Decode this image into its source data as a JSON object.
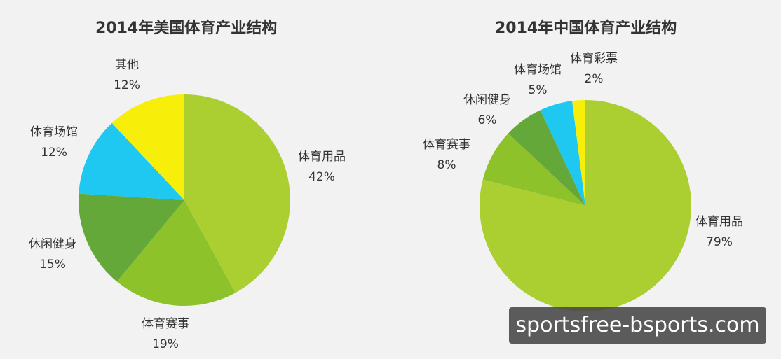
{
  "chart_data": [
    {
      "type": "pie",
      "title": "2014年美国体育产业结构",
      "slices": [
        {
          "label": "体育用品",
          "value": 42,
          "value_label": "42%",
          "color": "#abcf31"
        },
        {
          "label": "体育赛事",
          "value": 19,
          "value_label": "19%",
          "color": "#8dc22a"
        },
        {
          "label": "休闲健身",
          "value": 15,
          "value_label": "15%",
          "color": "#64a83a"
        },
        {
          "label": "体育场馆",
          "value": 12,
          "value_label": "12%",
          "color": "#1ec8f0"
        },
        {
          "label": "其他",
          "value": 12,
          "value_label": "12%",
          "color": "#f7ee09"
        }
      ]
    },
    {
      "type": "pie",
      "title": "2014年中国体育产业结构",
      "slices": [
        {
          "label": "体育用品",
          "value": 79,
          "value_label": "79%",
          "color": "#abcf31"
        },
        {
          "label": "体育赛事",
          "value": 8,
          "value_label": "8%",
          "color": "#8dc22a"
        },
        {
          "label": "休闲健身",
          "value": 6,
          "value_label": "6%",
          "color": "#64a83a"
        },
        {
          "label": "体育场馆",
          "value": 5,
          "value_label": "5%",
          "color": "#1ec8f0"
        },
        {
          "label": "体育彩票",
          "value": 2,
          "value_label": "2%",
          "color": "#f7ee09"
        }
      ]
    }
  ],
  "watermark": "sportsfree-bsports.com"
}
